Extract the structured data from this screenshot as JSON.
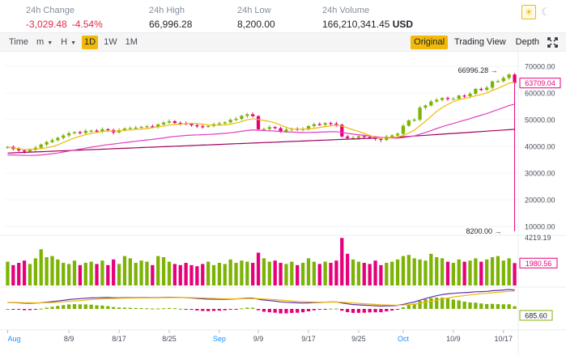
{
  "stats": {
    "change": {
      "label": "24h Change",
      "amount": "-3,029.48",
      "percent": "-4.54%"
    },
    "high": {
      "label": "24h High",
      "value": "66,996.28"
    },
    "low": {
      "label": "24h Low",
      "value": "8,200.00"
    },
    "volume": {
      "label": "24h Volume",
      "value": "166,210,341.45",
      "currency": "USD"
    }
  },
  "theme": {
    "light_icon": "sun-icon",
    "dark_icon": "moon-icon"
  },
  "toolbar": {
    "time_label": "Time",
    "minute_label": "m",
    "hour_label": "H",
    "intervals": [
      "1D",
      "1W",
      "1M"
    ],
    "active_interval": "1D",
    "views": [
      "Original",
      "Trading View",
      "Depth"
    ],
    "active_view": "Original",
    "fullscreen_icon": "fullscreen-icon"
  },
  "colors": {
    "up": "#7cb305",
    "down": "#e6007a",
    "ma_short": "#f0b90b",
    "ma_mid": "#e040c0",
    "ma_long": "#a0005a",
    "macd_dif": "#5a30a8",
    "accent": "#f0b90b"
  },
  "chart_data": {
    "type": "candlestick",
    "price_axis": {
      "ticks": [
        "70000.00",
        "60000.00",
        "50000.00",
        "40000.00",
        "30000.00",
        "20000.00",
        "10000.00"
      ],
      "ylim": [
        7000,
        73000
      ],
      "current_price": "63709.04",
      "high_marker": "66996.28",
      "low_marker": "8200.00"
    },
    "x_ticks": [
      "Aug",
      "8/9",
      "8/17",
      "8/25",
      "Sep",
      "9/9",
      "9/17",
      "9/25",
      "Oct",
      "10/9",
      "10/17"
    ],
    "volume_axis": {
      "max_label": "4219.19",
      "current_label": "1980.56"
    },
    "macd_axis": {
      "current_label": "685.60"
    },
    "closes": [
      39800,
      39000,
      38500,
      38100,
      38700,
      39500,
      40700,
      41600,
      42300,
      43200,
      44100,
      44900,
      45300,
      45000,
      45800,
      45900,
      45500,
      46400,
      46100,
      45200,
      46100,
      46700,
      46900,
      47000,
      47300,
      47500,
      47400,
      48200,
      48900,
      49400,
      48800,
      48600,
      48400,
      47900,
      47500,
      47400,
      47600,
      48300,
      48600,
      49000,
      49900,
      50300,
      51400,
      52000,
      51300,
      46400,
      46500,
      47200,
      46800,
      45600,
      46300,
      46600,
      46200,
      46500,
      47600,
      48300,
      48100,
      48700,
      48500,
      48100,
      43700,
      43100,
      43200,
      43800,
      43500,
      43400,
      42800,
      42400,
      43600,
      44100,
      44700,
      47700,
      49700,
      50000,
      54500,
      55300,
      56800,
      57400,
      58100,
      57800,
      57800,
      59000,
      58800,
      59700,
      61500,
      61200,
      62000,
      64300,
      64400,
      65600,
      66900,
      63700
    ],
    "volumes": [
      2100,
      1800,
      2000,
      2200,
      1900,
      2400,
      3200,
      2500,
      2600,
      2300,
      2000,
      1900,
      2200,
      1800,
      2000,
      2100,
      1900,
      2200,
      1800,
      2300,
      1900,
      2600,
      2400,
      2000,
      2200,
      2100,
      1800,
      2600,
      2500,
      2100,
      1900,
      1800,
      2000,
      1800,
      1700,
      1900,
      2100,
      1800,
      2000,
      1900,
      2300,
      2000,
      2200,
      2100,
      2000,
      2900,
      2400,
      2100,
      2200,
      2000,
      1900,
      2100,
      1800,
      2000,
      2400,
      2100,
      1900,
      2100,
      2000,
      2200,
      4200,
      2800,
      2300,
      2100,
      2000,
      1900,
      2200,
      1800,
      2000,
      2100,
      2300,
      2600,
      2700,
      2400,
      2300,
      2200,
      2800,
      2500,
      2400,
      2100,
      2000,
      2300,
      2100,
      2200,
      2400,
      2100,
      2300,
      2500,
      2600,
      2200,
      2400,
      1980
    ]
  }
}
